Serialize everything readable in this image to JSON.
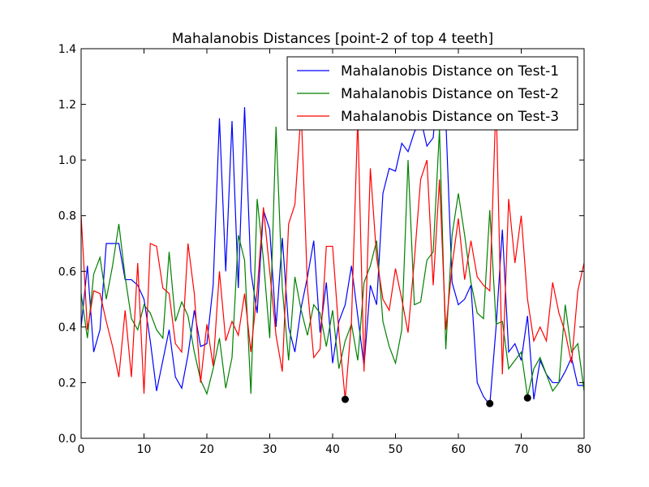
{
  "chart_data": {
    "type": "line",
    "title": "Mahalanobis Distances [point-2 of top 4 teeth]",
    "xlabel": "",
    "ylabel": "",
    "xlim": [
      0,
      80
    ],
    "ylim": [
      0.0,
      1.4
    ],
    "xticks": [
      0,
      10,
      20,
      30,
      40,
      50,
      60,
      70,
      80
    ],
    "yticks": [
      0.0,
      0.2,
      0.4,
      0.6,
      0.8,
      1.0,
      1.2,
      1.4
    ],
    "ytick_labels": [
      "0.0",
      "0.2",
      "0.4",
      "0.6",
      "0.8",
      "1.0",
      "1.2",
      "1.4"
    ],
    "grid": false,
    "legend_position": "top-right",
    "x": [
      0,
      1,
      2,
      3,
      4,
      5,
      6,
      7,
      8,
      9,
      10,
      11,
      12,
      13,
      14,
      15,
      16,
      17,
      18,
      19,
      20,
      21,
      22,
      23,
      24,
      25,
      26,
      27,
      28,
      29,
      30,
      31,
      32,
      33,
      34,
      35,
      36,
      37,
      38,
      39,
      40,
      41,
      42,
      43,
      44,
      45,
      46,
      47,
      48,
      49,
      50,
      51,
      52,
      53,
      54,
      55,
      56,
      57,
      58,
      59,
      60,
      61,
      62,
      63,
      64,
      65,
      66,
      67,
      68,
      69,
      70,
      71,
      72,
      73,
      74,
      75,
      76,
      77,
      78,
      79,
      80
    ],
    "series": [
      {
        "name": "Mahalanobis Distance on Test-1",
        "color": "#0000ff",
        "values": [
          0.4,
          0.62,
          0.31,
          0.39,
          0.7,
          0.7,
          0.7,
          0.57,
          0.57,
          0.55,
          0.5,
          0.35,
          0.17,
          0.28,
          0.39,
          0.22,
          0.18,
          0.3,
          0.46,
          0.33,
          0.34,
          0.55,
          1.15,
          0.6,
          1.14,
          0.54,
          1.19,
          0.6,
          0.45,
          0.82,
          0.75,
          0.4,
          0.72,
          0.4,
          0.31,
          0.47,
          0.58,
          0.71,
          0.38,
          0.56,
          0.27,
          0.42,
          0.48,
          0.62,
          0.44,
          0.26,
          0.55,
          0.48,
          0.88,
          0.97,
          0.96,
          1.06,
          1.03,
          1.1,
          1.15,
          1.05,
          1.08,
          1.35,
          1.15,
          0.56,
          0.48,
          0.5,
          0.55,
          0.2,
          0.15,
          0.12,
          0.4,
          0.75,
          0.31,
          0.34,
          0.28,
          0.44,
          0.14,
          0.28,
          0.23,
          0.2,
          0.2,
          0.24,
          0.29,
          0.19,
          0.19
        ]
      },
      {
        "name": "Mahalanobis Distance on Test-2",
        "color": "#008000",
        "values": [
          0.52,
          0.36,
          0.59,
          0.65,
          0.5,
          0.62,
          0.77,
          0.58,
          0.43,
          0.39,
          0.48,
          0.45,
          0.39,
          0.36,
          0.67,
          0.42,
          0.49,
          0.44,
          0.31,
          0.21,
          0.16,
          0.25,
          0.36,
          0.18,
          0.29,
          0.73,
          0.64,
          0.16,
          0.86,
          0.64,
          0.36,
          1.12,
          0.54,
          0.28,
          0.58,
          0.46,
          0.37,
          0.48,
          0.45,
          0.33,
          0.46,
          0.25,
          0.35,
          0.41,
          0.28,
          0.56,
          0.62,
          0.71,
          0.42,
          0.33,
          0.27,
          0.39,
          1.0,
          0.48,
          0.49,
          0.64,
          0.67,
          1.11,
          0.32,
          0.73,
          0.88,
          0.73,
          0.56,
          0.45,
          0.43,
          0.82,
          0.41,
          0.42,
          0.25,
          0.28,
          0.31,
          0.15,
          0.25,
          0.29,
          0.23,
          0.17,
          0.2,
          0.48,
          0.31,
          0.34,
          0.17
        ]
      },
      {
        "name": "Mahalanobis Distance on Test-3",
        "color": "#ff0000",
        "values": [
          0.8,
          0.39,
          0.53,
          0.52,
          0.42,
          0.33,
          0.22,
          0.46,
          0.22,
          0.63,
          0.16,
          0.7,
          0.69,
          0.54,
          0.52,
          0.34,
          0.31,
          0.7,
          0.52,
          0.2,
          0.41,
          0.26,
          0.6,
          0.35,
          0.42,
          0.37,
          0.52,
          0.31,
          0.53,
          0.83,
          0.6,
          0.37,
          0.24,
          0.77,
          0.84,
          1.18,
          0.54,
          0.29,
          0.32,
          0.69,
          0.69,
          0.38,
          0.14,
          0.42,
          1.15,
          0.24,
          0.97,
          0.65,
          0.5,
          0.46,
          0.61,
          0.5,
          0.38,
          0.64,
          0.93,
          1.0,
          0.55,
          0.93,
          0.39,
          0.62,
          0.79,
          0.57,
          0.71,
          0.58,
          0.55,
          0.53,
          1.22,
          0.23,
          0.86,
          0.63,
          0.8,
          0.5,
          0.35,
          0.4,
          0.35,
          0.56,
          0.45,
          0.38,
          0.27,
          0.53,
          0.63
        ]
      }
    ],
    "markers": {
      "color": "#000000",
      "points": [
        {
          "x": 42,
          "y": 0.14
        },
        {
          "x": 65,
          "y": 0.125
        },
        {
          "x": 71,
          "y": 0.145
        }
      ]
    }
  }
}
